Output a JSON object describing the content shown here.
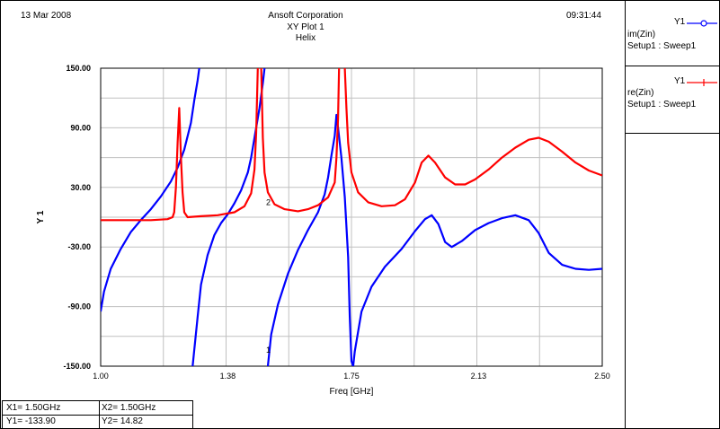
{
  "header": {
    "date": "13 Mar 2008",
    "company": "Ansoft Corporation",
    "plot_title": "XY Plot 1",
    "subtitle": "Helix",
    "time": "09:31:44"
  },
  "legend": [
    {
      "trace": "Y1",
      "name": "im(Zin)",
      "setup": "Setup1 : Sweep1",
      "color": "#0000ff",
      "symbol": "circle-icon"
    },
    {
      "trace": "Y1",
      "name": "re(Zin)",
      "setup": "Setup1 : Sweep1",
      "color": "#ff0000",
      "symbol": "plus-icon"
    }
  ],
  "markers": {
    "x1": "X1= 1.50GHz",
    "y1": "Y1= -133.90",
    "x2": "X2= 1.50GHz",
    "y2": "Y2= 14.82",
    "m1_label": "1",
    "m2_label": "2"
  },
  "chart_data": {
    "type": "line",
    "title": "XY Plot 1",
    "subtitle": "Helix",
    "xlabel": "Freq [GHz]",
    "ylabel": "Y 1",
    "xlim": [
      1.0,
      2.5
    ],
    "ylim": [
      -150,
      150
    ],
    "x_ticks": [
      1.0,
      1.38,
      1.75,
      2.13,
      2.5
    ],
    "x_tick_labels": [
      "1.00",
      "1.38",
      "1.75",
      "2.13",
      "2.50"
    ],
    "y_ticks": [
      150,
      90,
      30,
      -30,
      -90,
      -150
    ],
    "y_tick_labels": [
      "150.00",
      "90.00",
      "30.00",
      "-30.00",
      "-90.00",
      "-150.00"
    ],
    "grid": true,
    "legend_placement": "right-panel",
    "series": [
      {
        "name": "im(Zin)",
        "color": "#0000ff",
        "segments": [
          [
            [
              1.0,
              -95
            ],
            [
              1.01,
              -75
            ],
            [
              1.03,
              -52
            ],
            [
              1.06,
              -32
            ],
            [
              1.09,
              -15
            ],
            [
              1.12,
              -3
            ],
            [
              1.15,
              8
            ],
            [
              1.18,
              21
            ],
            [
              1.21,
              36
            ],
            [
              1.23,
              50
            ],
            [
              1.25,
              68
            ],
            [
              1.27,
              95
            ],
            [
              1.28,
              118
            ],
            [
              1.29,
              138
            ],
            [
              1.295,
              150
            ]
          ],
          [
            [
              1.275,
              -150
            ],
            [
              1.28,
              -133
            ],
            [
              1.29,
              -100
            ],
            [
              1.3,
              -68
            ],
            [
              1.32,
              -38
            ],
            [
              1.34,
              -18
            ],
            [
              1.36,
              -6
            ],
            [
              1.38,
              3
            ],
            [
              1.4,
              14
            ],
            [
              1.42,
              27
            ],
            [
              1.44,
              45
            ],
            [
              1.45,
              60
            ],
            [
              1.46,
              80
            ],
            [
              1.475,
              110
            ],
            [
              1.485,
              135
            ],
            [
              1.49,
              150
            ]
          ],
          [
            [
              1.5,
              -150
            ],
            [
              1.51,
              -118
            ],
            [
              1.53,
              -88
            ],
            [
              1.56,
              -57
            ],
            [
              1.59,
              -33
            ],
            [
              1.62,
              -13
            ],
            [
              1.65,
              5
            ],
            [
              1.67,
              23
            ],
            [
              1.68,
              40
            ],
            [
              1.69,
              62
            ],
            [
              1.7,
              82
            ],
            [
              1.705,
              103
            ],
            [
              1.71,
              90
            ],
            [
              1.72,
              60
            ],
            [
              1.73,
              20
            ],
            [
              1.74,
              -40
            ],
            [
              1.745,
              -100
            ],
            [
              1.75,
              -145
            ],
            [
              1.755,
              -150
            ],
            [
              1.76,
              -135
            ],
            [
              1.78,
              -95
            ],
            [
              1.81,
              -70
            ],
            [
              1.85,
              -50
            ],
            [
              1.9,
              -32
            ],
            [
              1.94,
              -14
            ],
            [
              1.97,
              -2
            ],
            [
              1.99,
              2
            ],
            [
              2.01,
              -7
            ],
            [
              2.03,
              -25
            ],
            [
              2.05,
              -30
            ],
            [
              2.08,
              -24
            ],
            [
              2.12,
              -13
            ],
            [
              2.16,
              -6
            ],
            [
              2.2,
              -1
            ],
            [
              2.24,
              2
            ],
            [
              2.28,
              -3
            ],
            [
              2.31,
              -16
            ],
            [
              2.34,
              -36
            ],
            [
              2.38,
              -48
            ],
            [
              2.42,
              -52
            ],
            [
              2.46,
              -53
            ],
            [
              2.5,
              -52
            ]
          ]
        ]
      },
      {
        "name": "re(Zin)",
        "color": "#ff0000",
        "segments": [
          [
            [
              1.0,
              -3
            ],
            [
              1.05,
              -3
            ],
            [
              1.1,
              -3
            ],
            [
              1.15,
              -3
            ],
            [
              1.2,
              -2
            ],
            [
              1.215,
              0
            ],
            [
              1.22,
              5
            ],
            [
              1.225,
              30
            ],
            [
              1.23,
              75
            ],
            [
              1.235,
              110
            ],
            [
              1.24,
              60
            ],
            [
              1.245,
              25
            ],
            [
              1.25,
              5
            ],
            [
              1.26,
              0
            ],
            [
              1.3,
              1
            ],
            [
              1.35,
              2
            ],
            [
              1.4,
              5
            ],
            [
              1.43,
              11
            ],
            [
              1.45,
              24
            ],
            [
              1.46,
              48
            ],
            [
              1.465,
              85
            ],
            [
              1.47,
              150
            ]
          ],
          [
            [
              1.48,
              150
            ],
            [
              1.485,
              80
            ],
            [
              1.49,
              45
            ],
            [
              1.5,
              25
            ],
            [
              1.52,
              13
            ],
            [
              1.55,
              8
            ],
            [
              1.59,
              6
            ],
            [
              1.62,
              8
            ],
            [
              1.65,
              12
            ],
            [
              1.68,
              20
            ],
            [
              1.7,
              35
            ],
            [
              1.705,
              60
            ],
            [
              1.71,
              100
            ],
            [
              1.713,
              150
            ]
          ],
          [
            [
              1.73,
              150
            ],
            [
              1.735,
              110
            ],
            [
              1.74,
              75
            ],
            [
              1.75,
              45
            ],
            [
              1.77,
              25
            ],
            [
              1.8,
              15
            ],
            [
              1.84,
              11
            ],
            [
              1.88,
              12
            ],
            [
              1.91,
              18
            ],
            [
              1.94,
              35
            ],
            [
              1.96,
              55
            ],
            [
              1.98,
              62
            ],
            [
              2.0,
              55
            ],
            [
              2.03,
              40
            ],
            [
              2.06,
              33
            ],
            [
              2.09,
              33
            ],
            [
              2.12,
              38
            ],
            [
              2.16,
              48
            ],
            [
              2.2,
              60
            ],
            [
              2.24,
              70
            ],
            [
              2.28,
              78
            ],
            [
              2.31,
              80
            ],
            [
              2.34,
              76
            ],
            [
              2.38,
              66
            ],
            [
              2.42,
              55
            ],
            [
              2.46,
              47
            ],
            [
              2.5,
              42
            ]
          ]
        ]
      }
    ]
  }
}
